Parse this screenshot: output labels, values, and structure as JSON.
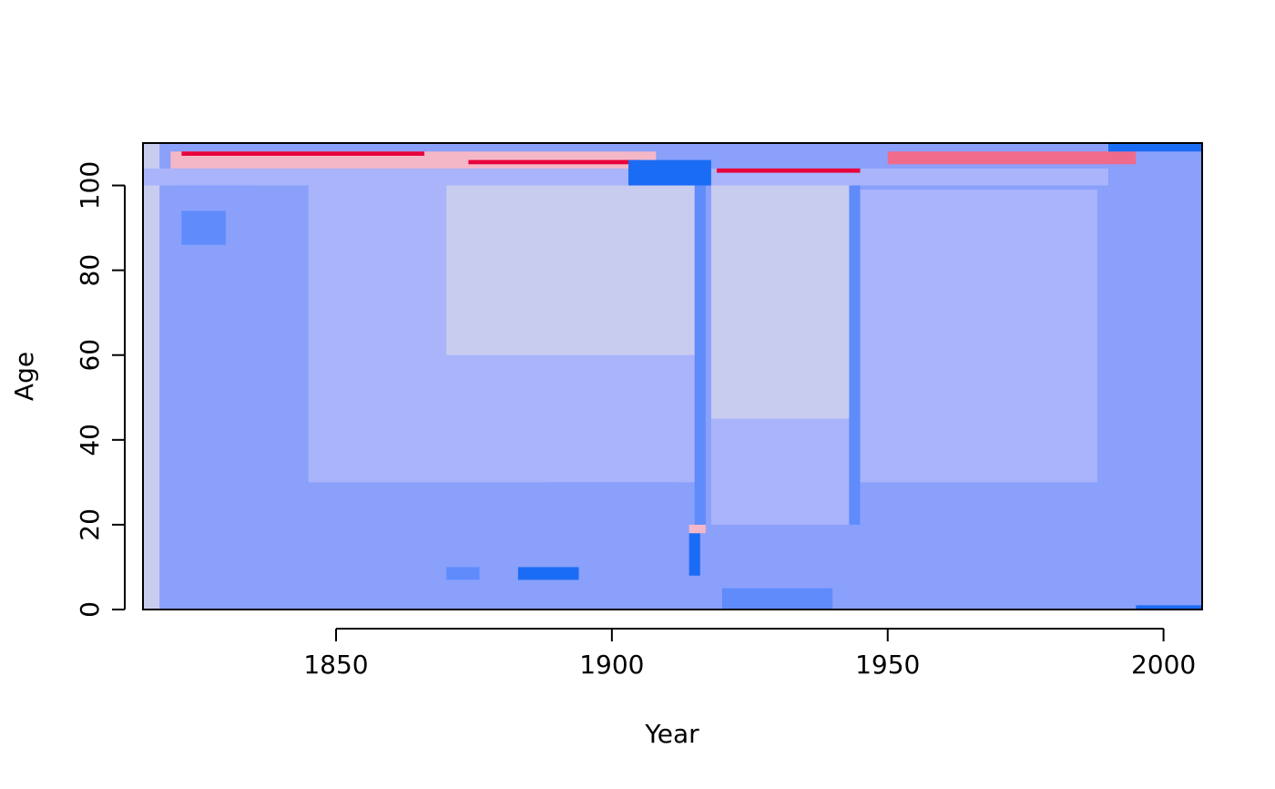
{
  "chart_data": {
    "type": "heatmap",
    "title": "",
    "xlabel": "Year",
    "ylabel": "Age",
    "xlim": [
      1815,
      2007
    ],
    "ylim": [
      0,
      110
    ],
    "x_ticks": [
      1850,
      1900,
      1950,
      2000
    ],
    "x_tick_labels": [
      "1850",
      "1900",
      "1950",
      "2000"
    ],
    "y_ticks": [
      0,
      20,
      40,
      60,
      80,
      100
    ],
    "y_tick_labels": [
      "0",
      "20",
      "40",
      "60",
      "80",
      "100"
    ],
    "grid": false,
    "legend": "none",
    "colors": {
      "lightest_blue": "#c8cdf0",
      "light_blue": "#a9b4fa",
      "mid_blue": "#8aa0fb",
      "strong_blue": "#5f8bfb",
      "bright_blue": "#1a6cf5",
      "deep_blue": "#0a1ef0",
      "pale_pink": "#f4b7c8",
      "pink": "#f06a8c",
      "red": "#e8003a",
      "brown": "#6b4a1a",
      "black": "#000000"
    },
    "regions": [
      {
        "year_range": [
          1815,
          2007
        ],
        "age_range": [
          0,
          110
        ],
        "color": "mid_blue"
      },
      {
        "year_range": [
          1815,
          1818
        ],
        "age_range": [
          0,
          110
        ],
        "color": "lightest_blue"
      },
      {
        "year_range": [
          1822,
          1845
        ],
        "age_range": [
          28,
          90
        ],
        "color": "mid_blue"
      },
      {
        "year_range": [
          1845,
          1915
        ],
        "age_range": [
          30,
          100
        ],
        "color": "light_blue"
      },
      {
        "year_range": [
          1870,
          1915
        ],
        "age_range": [
          60,
          100
        ],
        "color": "lightest_blue"
      },
      {
        "year_range": [
          1888,
          1912
        ],
        "age_range": [
          0,
          30
        ],
        "color": "mid_blue"
      },
      {
        "year_range": [
          1918,
          1945
        ],
        "age_range": [
          45,
          102
        ],
        "color": "lightest_blue"
      },
      {
        "year_range": [
          1918,
          1945
        ],
        "age_range": [
          20,
          45
        ],
        "color": "light_blue"
      },
      {
        "year_range": [
          1920,
          1940
        ],
        "age_range": [
          0,
          5
        ],
        "color": "strong_blue"
      },
      {
        "year_range": [
          1945,
          1988
        ],
        "age_range": [
          30,
          99
        ],
        "color": "light_blue"
      },
      {
        "year_range": [
          1988,
          2007
        ],
        "age_range": [
          0,
          100
        ],
        "color": "mid_blue"
      },
      {
        "year_range": [
          1822,
          1830
        ],
        "age_range": [
          86,
          94
        ],
        "color": "strong_blue"
      },
      {
        "year_range": [
          1822,
          1835
        ],
        "age_range": [
          100,
          102
        ],
        "color": "bright_blue"
      },
      {
        "year_range": [
          1815,
          1990
        ],
        "age_range": [
          100,
          104
        ],
        "color": "light_blue"
      },
      {
        "year_range": [
          1820,
          1908
        ],
        "age_range": [
          104,
          108
        ],
        "color": "pale_pink"
      },
      {
        "year_range": [
          1822,
          1866
        ],
        "age_range": [
          107,
          108
        ],
        "color": "red"
      },
      {
        "year_range": [
          1874,
          1905
        ],
        "age_range": [
          105,
          106
        ],
        "color": "red"
      },
      {
        "year_range": [
          1919,
          1945
        ],
        "age_range": [
          103,
          104
        ],
        "color": "red"
      },
      {
        "year_range": [
          1903,
          1918
        ],
        "age_range": [
          100,
          106
        ],
        "color": "bright_blue"
      },
      {
        "year_range": [
          1950,
          1995
        ],
        "age_range": [
          105,
          108
        ],
        "color": "pink"
      },
      {
        "year_range": [
          1990,
          2007
        ],
        "age_range": [
          108,
          110
        ],
        "color": "bright_blue"
      },
      {
        "year_range": [
          1914,
          1916
        ],
        "age_range": [
          8,
          18
        ],
        "color": "bright_blue"
      },
      {
        "year_range": [
          1914,
          1917
        ],
        "age_range": [
          18,
          20
        ],
        "color": "pale_pink"
      },
      {
        "year_range": [
          1915,
          1917
        ],
        "age_range": [
          20,
          100
        ],
        "color": "strong_blue"
      },
      {
        "year_range": [
          1943,
          1945
        ],
        "age_range": [
          20,
          100
        ],
        "color": "strong_blue"
      },
      {
        "year_range": [
          1870,
          1876
        ],
        "age_range": [
          7,
          10
        ],
        "color": "strong_blue"
      },
      {
        "year_range": [
          1883,
          1894
        ],
        "age_range": [
          7,
          10
        ],
        "color": "bright_blue"
      },
      {
        "year_range": [
          1995,
          2007
        ],
        "age_range": [
          0,
          1
        ],
        "color": "bright_blue"
      }
    ]
  }
}
